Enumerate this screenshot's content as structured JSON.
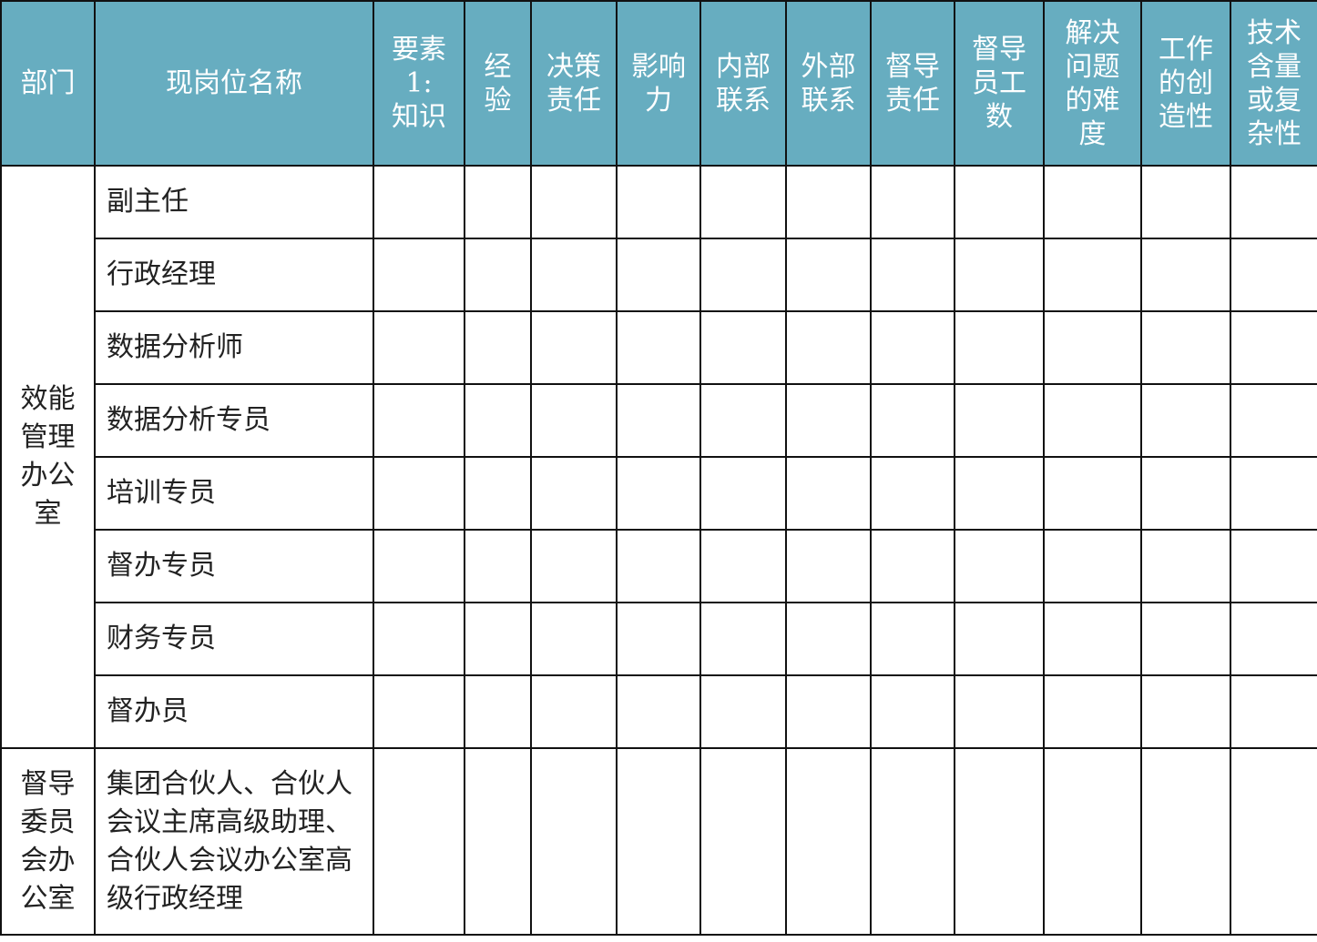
{
  "headers": [
    "部门",
    "现岗位名称",
    "要素\n1:\n知识",
    "经\n验",
    "决策\n责任",
    "影响\n力",
    "内部\n联系",
    "外部\n联系",
    "督导\n责任",
    "督导\n员工\n数",
    "解决\n问题\n的难\n度",
    "工作\n的创\n造性",
    "技术\n含量\n或复\n杂性"
  ],
  "header_color": "#67adc0",
  "departments": [
    {
      "name": "效能\n管理\n办公\n室",
      "positions": [
        "副主任",
        "行政经理",
        "数据分析师",
        "数据分析专员",
        "培训专员",
        "督办专员",
        "财务专员",
        "督办员"
      ]
    },
    {
      "name": "督导\n委员\n会办\n公室",
      "positions": [
        "集团合伙人、合伙人会议主席高级助理、合伙人会议办公室高级行政经理"
      ]
    }
  ]
}
